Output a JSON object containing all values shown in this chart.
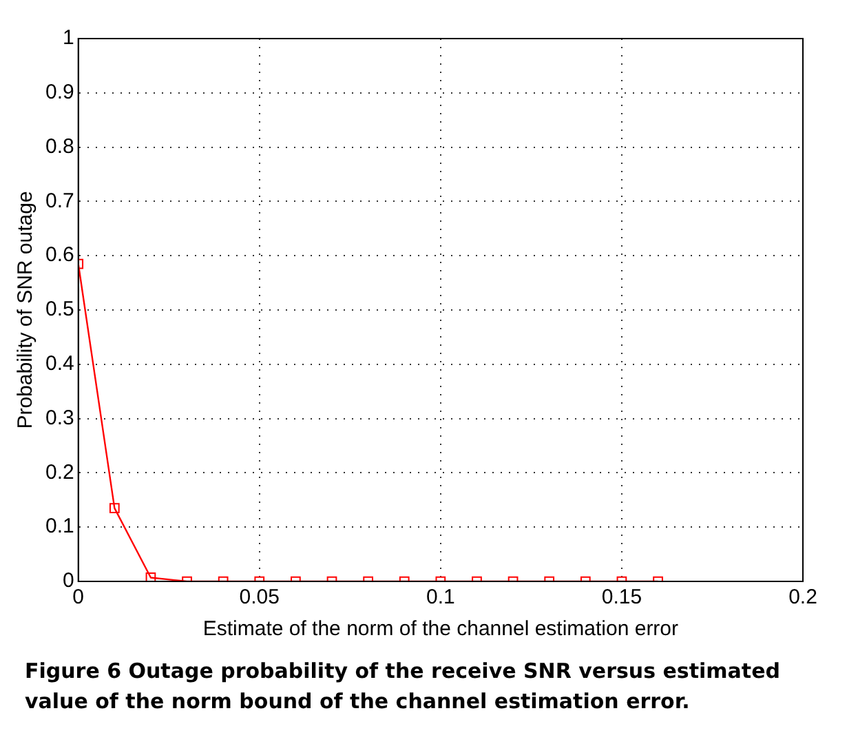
{
  "chart_data": {
    "type": "line",
    "xlabel": "Estimate of the norm of the channel estimation error",
    "ylabel": "Probability of SNR outage",
    "x": [
      0,
      0.01,
      0.02,
      0.03,
      0.04,
      0.05,
      0.06,
      0.07,
      0.08,
      0.09,
      0.1,
      0.11,
      0.12,
      0.13,
      0.14,
      0.15,
      0.16
    ],
    "series": [
      {
        "color": "#ff0000",
        "values": [
          0.585,
          0.135,
          0.007,
          0,
          0,
          0,
          0,
          0,
          0,
          0,
          0,
          0,
          0,
          0,
          0,
          0,
          0
        ]
      }
    ],
    "xlim": [
      0,
      0.2
    ],
    "xticks": [
      0,
      0.05,
      0.1,
      0.15,
      0.2
    ],
    "ylim": [
      0,
      1
    ],
    "yticks": [
      0,
      0.1,
      0.2,
      0.3,
      0.4,
      0.5,
      0.6,
      0.7,
      0.8,
      0.9,
      1
    ],
    "grid": true,
    "marker": "square",
    "line_style": "solid",
    "legend": false,
    "annotations": [
      "Figure 6 Outage probability of the receive SNR versus estimated value of the norm bound of the channel estimation error."
    ]
  }
}
